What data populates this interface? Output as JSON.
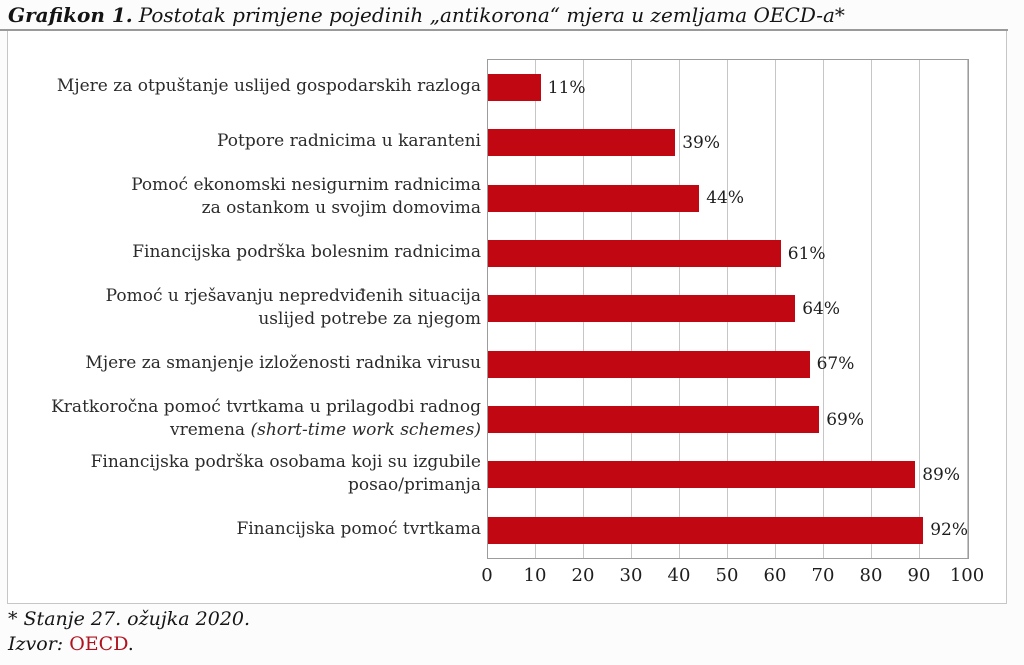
{
  "title": {
    "prefix": "Grafikon 1.",
    "rest": "Postotak primjene pojedinih „antikorona“ mjera u zemljama OECD-a*"
  },
  "chart_data": {
    "type": "bar",
    "orientation": "horizontal",
    "title": "Grafikon 1. Postotak primjene pojedinih „antikorona“ mjera u zemljama OECD-a*",
    "xlabel": "",
    "ylabel": "",
    "xlim": [
      0,
      100
    ],
    "x_ticks": [
      0,
      10,
      20,
      30,
      40,
      50,
      60,
      70,
      80,
      90,
      100
    ],
    "grid": "vertical",
    "legend": "none",
    "bar_color": "#c00712",
    "categories": [
      "Mjere za otpuštanje uslijed gospodarskih razloga",
      "Potpore radnicima u karanteni",
      "Pomoć ekonomski nesigurnim radnicima za ostankom u svojim domovima",
      "Financijska podrška bolesnim radnicima",
      "Pomoć u rješavanju nepredviđenih situacija uslijed potrebe za njegom",
      "Mjere za smanjenje izloženosti radnika virusu",
      "Kratkoročna pomoć tvrtkama u prilagodbi radnog vremena (short-time work schemes)",
      "Financijska podrška osobama koji su izgubile posao/primanja",
      "Financijska pomoć tvrtkama"
    ],
    "values": [
      11,
      39,
      44,
      61,
      64,
      67,
      69,
      89,
      92
    ],
    "value_labels": [
      "11%",
      "39%",
      "44%",
      "61%",
      "64%",
      "67%",
      "69%",
      "89%",
      "92%"
    ],
    "rows": [
      {
        "value": 11,
        "value_label": "11%",
        "lines": [
          [
            {
              "t": "Mjere za otpuštanje uslijed gospodarskih razloga"
            }
          ]
        ]
      },
      {
        "value": 39,
        "value_label": "39%",
        "lines": [
          [
            {
              "t": "Potpore radnicima u karanteni"
            }
          ]
        ]
      },
      {
        "value": 44,
        "value_label": "44%",
        "lines": [
          [
            {
              "t": "Pomoć ekonomski nesigurnim radnicima"
            }
          ],
          [
            {
              "t": "za ostankom u svojim domovima"
            }
          ]
        ]
      },
      {
        "value": 61,
        "value_label": "61%",
        "lines": [
          [
            {
              "t": "Financijska podrška bolesnim radnicima"
            }
          ]
        ]
      },
      {
        "value": 64,
        "value_label": "64%",
        "lines": [
          [
            {
              "t": "Pomoć u rješavanju nepredviđenih situacija"
            }
          ],
          [
            {
              "t": "uslijed potrebe za njegom"
            }
          ]
        ]
      },
      {
        "value": 67,
        "value_label": "67%",
        "lines": [
          [
            {
              "t": "Mjere za smanjenje izloženosti radnika virusu"
            }
          ]
        ]
      },
      {
        "value": 69,
        "value_label": "69%",
        "lines": [
          [
            {
              "t": "Kratkoročna pomoć tvrtkama u prilagodbi radnog"
            }
          ],
          [
            {
              "t": "vremena "
            },
            {
              "t": "(short-time work schemes)",
              "i": true
            }
          ]
        ]
      },
      {
        "value": 89,
        "value_label": "89%",
        "lines": [
          [
            {
              "t": "Financijska podrška osobama koji su izgubile"
            }
          ],
          [
            {
              "t": "posao/primanja"
            }
          ]
        ]
      },
      {
        "value": 92,
        "value_label": "92%",
        "lines": [
          [
            {
              "t": "Financijska pomoć tvrtkama"
            }
          ]
        ]
      }
    ]
  },
  "footnote": "* Stanje 27. ožujka 2020.",
  "source": {
    "prefix": "Izvor: ",
    "link_text": "OECD",
    "suffix": "."
  }
}
